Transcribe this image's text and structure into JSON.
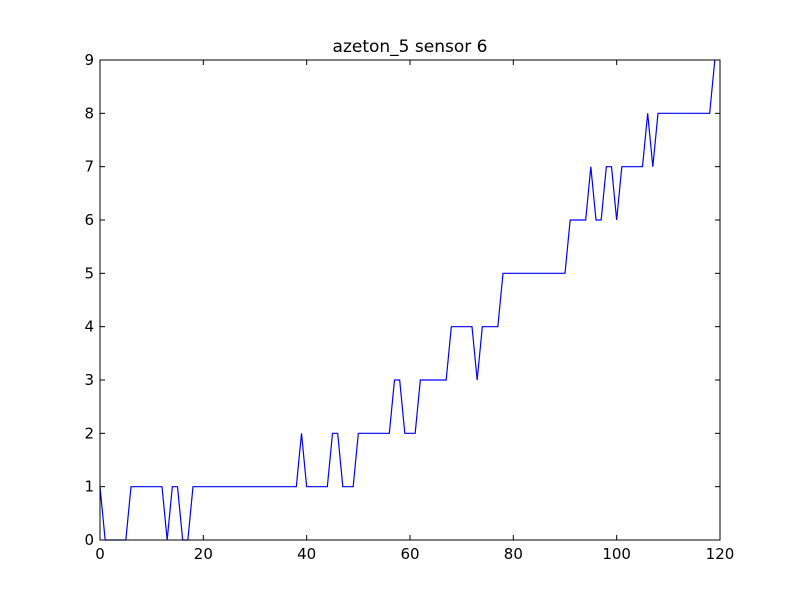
{
  "chart_data": {
    "type": "line",
    "title": "azeton_5 sensor 6",
    "xlabel": "",
    "ylabel": "",
    "xlim": [
      0,
      120
    ],
    "ylim": [
      0,
      9
    ],
    "xticks": [
      0,
      20,
      40,
      60,
      80,
      100,
      120
    ],
    "yticks": [
      0,
      1,
      2,
      3,
      4,
      5,
      6,
      7,
      8,
      9
    ],
    "grid": false,
    "legend": null,
    "series": [
      {
        "color": "#0000ff",
        "x": [
          0,
          1,
          2,
          3,
          4,
          5,
          6,
          7,
          8,
          9,
          10,
          11,
          12,
          13,
          14,
          15,
          16,
          17,
          18,
          19,
          20,
          21,
          22,
          23,
          24,
          25,
          26,
          27,
          28,
          29,
          30,
          31,
          32,
          33,
          34,
          35,
          36,
          37,
          38,
          39,
          40,
          41,
          42,
          43,
          44,
          45,
          46,
          47,
          48,
          49,
          50,
          51,
          52,
          53,
          54,
          55,
          56,
          57,
          58,
          59,
          60,
          61,
          62,
          63,
          64,
          65,
          66,
          67,
          68,
          69,
          70,
          71,
          72,
          73,
          74,
          75,
          76,
          77,
          78,
          79,
          80,
          81,
          82,
          83,
          84,
          85,
          86,
          87,
          88,
          89,
          90,
          91,
          92,
          93,
          94,
          95,
          96,
          97,
          98,
          99,
          100,
          101,
          102,
          103,
          104,
          105,
          106,
          107,
          108,
          109,
          110,
          111,
          112,
          113,
          114,
          115,
          116,
          117,
          118,
          119
        ],
        "y": [
          1,
          0,
          0,
          0,
          0,
          0,
          1,
          1,
          1,
          1,
          1,
          1,
          1,
          0,
          1,
          1,
          0,
          0,
          1,
          1,
          1,
          1,
          1,
          1,
          1,
          1,
          1,
          1,
          1,
          1,
          1,
          1,
          1,
          1,
          1,
          1,
          1,
          1,
          1,
          2,
          1,
          1,
          1,
          1,
          1,
          2,
          2,
          1,
          1,
          1,
          2,
          2,
          2,
          2,
          2,
          2,
          2,
          3,
          3,
          2,
          2,
          2,
          3,
          3,
          3,
          3,
          3,
          3,
          4,
          4,
          4,
          4,
          4,
          3,
          4,
          4,
          4,
          4,
          5,
          5,
          5,
          5,
          5,
          5,
          5,
          5,
          5,
          5,
          5,
          5,
          5,
          6,
          6,
          6,
          6,
          7,
          6,
          6,
          7,
          7,
          6,
          7,
          7,
          7,
          7,
          7,
          8,
          7,
          8,
          8,
          8,
          8,
          8,
          8,
          8,
          8,
          8,
          8,
          8,
          9
        ]
      }
    ]
  }
}
